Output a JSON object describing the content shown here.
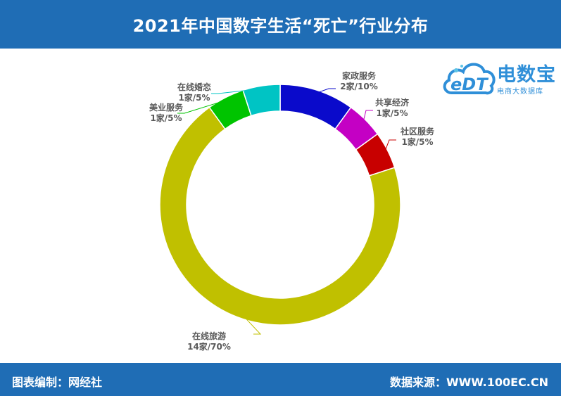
{
  "header": {
    "title": "2021年中国数字生活“死亡”行业分布"
  },
  "footer": {
    "credit": "图表编制：网经社",
    "source": "数据来源：WWW.100EC.CN"
  },
  "logo": {
    "mark": "eDT",
    "name": "电数宝",
    "subtitle": "电商大数据库"
  },
  "colors": {
    "header_bg": "#1f6db5",
    "logo": "#2f8fd8"
  },
  "chart_data": {
    "type": "pie",
    "style": "donut",
    "unit": "家",
    "legend": "none",
    "slices": [
      {
        "name": "家政服务",
        "count": 2,
        "percent": 10,
        "label": "2家/10%",
        "color": "#0a0acb"
      },
      {
        "name": "共享经济",
        "count": 1,
        "percent": 5,
        "label": "1家/5%",
        "color": "#c400c4"
      },
      {
        "name": "社区服务",
        "count": 1,
        "percent": 5,
        "label": "1家/5%",
        "color": "#c80000"
      },
      {
        "name": "在线旅游",
        "count": 14,
        "percent": 70,
        "label": "14家/70%",
        "color": "#c0c000"
      },
      {
        "name": "美业服务",
        "count": 1,
        "percent": 5,
        "label": "1家/5%",
        "color": "#00c400"
      },
      {
        "name": "在线婚恋",
        "count": 1,
        "percent": 5,
        "label": "1家/5%",
        "color": "#00c4c4"
      }
    ]
  }
}
